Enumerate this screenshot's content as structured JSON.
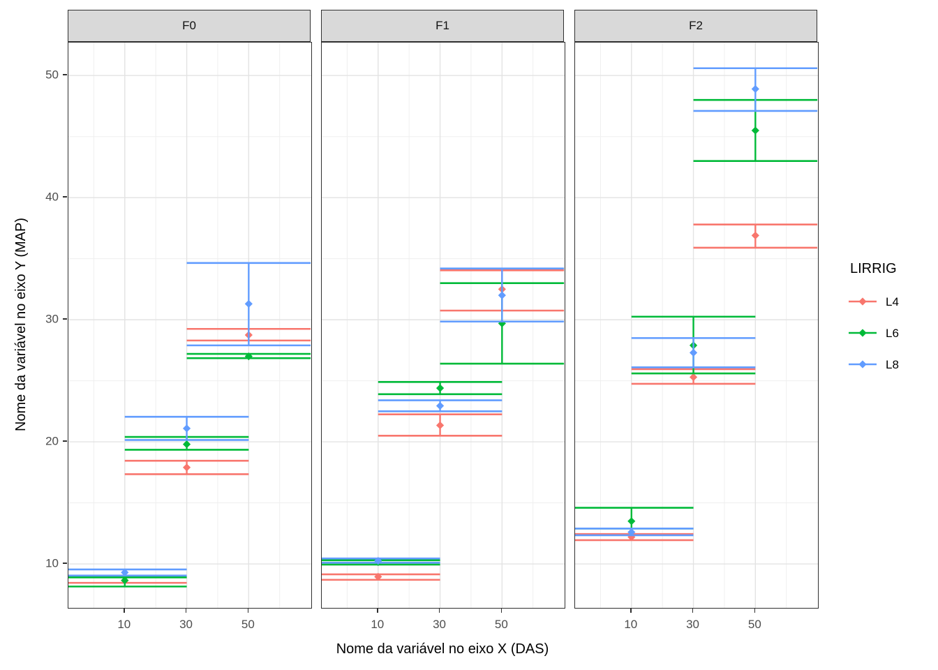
{
  "figure": {
    "x_axis_title": "Nome da variável no eixo X (DAS)",
    "y_axis_title": "Nome da variável no eixo Y (MAP)"
  },
  "legend": {
    "title": "LIRRIG",
    "items": [
      {
        "label": "L4",
        "color": "#F8766D"
      },
      {
        "label": "L6",
        "color": "#00BA38"
      },
      {
        "label": "L8",
        "color": "#619CFF"
      }
    ]
  },
  "theme": {
    "background": "#FFFFFF",
    "strip_fill": "#D9D9D9",
    "panel_border": "#2F2F2F",
    "grid_major": "#E3E3E3",
    "grid_minor": "#EFEFEF",
    "tick_color": "#2F2F2F",
    "tick_label_color": "#4D4D4D",
    "title_color": "#000000"
  },
  "chart_data": {
    "type": "scatter",
    "subtype": "pointrange-with-errorbars",
    "title": "",
    "xlabel": "Nome da variável no eixo X (DAS)",
    "ylabel": "Nome da variável no eixo Y (MAP)",
    "facets": [
      "F0",
      "F1",
      "F2"
    ],
    "series_order": [
      "L4",
      "L6",
      "L8"
    ],
    "colors": {
      "L4": "#F8766D",
      "L6": "#00BA38",
      "L8": "#619CFF"
    },
    "x_ticks": [
      10,
      30,
      50
    ],
    "y_ticks": [
      10,
      20,
      30,
      40,
      50
    ],
    "x_minor": [
      0,
      20,
      40,
      60
    ],
    "y_minor": [
      15,
      25,
      35,
      45
    ],
    "x_range": [
      -8.2,
      70.2
    ],
    "y_range": [
      6.4,
      52.7
    ],
    "errorbar_halfwidth": 20,
    "grid": true,
    "legend_position": "right",
    "points": [
      {
        "facet": "F0",
        "series": "L4",
        "x": 10,
        "y": 8.65,
        "ymin": 8.45,
        "ymax": 8.95
      },
      {
        "facet": "F0",
        "series": "L4",
        "x": 30,
        "y": 17.9,
        "ymin": 17.35,
        "ymax": 18.45
      },
      {
        "facet": "F0",
        "series": "L4",
        "x": 50,
        "y": 28.75,
        "ymin": 28.3,
        "ymax": 29.25
      },
      {
        "facet": "F0",
        "series": "L6",
        "x": 10,
        "y": 8.65,
        "ymin": 8.15,
        "ymax": 8.9
      },
      {
        "facet": "F0",
        "series": "L6",
        "x": 30,
        "y": 19.8,
        "ymin": 19.35,
        "ymax": 20.4
      },
      {
        "facet": "F0",
        "series": "L6",
        "x": 50,
        "y": 27.0,
        "ymin": 26.85,
        "ymax": 27.2
      },
      {
        "facet": "F0",
        "series": "L8",
        "x": 10,
        "y": 9.3,
        "ymin": 9.05,
        "ymax": 9.55
      },
      {
        "facet": "F0",
        "series": "L8",
        "x": 30,
        "y": 21.1,
        "ymin": 20.15,
        "ymax": 22.05
      },
      {
        "facet": "F0",
        "series": "L8",
        "x": 50,
        "y": 31.3,
        "ymin": 27.9,
        "ymax": 34.65
      },
      {
        "facet": "F1",
        "series": "L4",
        "x": 10,
        "y": 8.95,
        "ymin": 8.7,
        "ymax": 9.15
      },
      {
        "facet": "F1",
        "series": "L4",
        "x": 30,
        "y": 21.35,
        "ymin": 20.5,
        "ymax": 22.25
      },
      {
        "facet": "F1",
        "series": "L4",
        "x": 50,
        "y": 32.5,
        "ymin": 30.75,
        "ymax": 34.05
      },
      {
        "facet": "F1",
        "series": "L6",
        "x": 10,
        "y": 10.15,
        "ymin": 9.95,
        "ymax": 10.3
      },
      {
        "facet": "F1",
        "series": "L6",
        "x": 30,
        "y": 24.4,
        "ymin": 23.9,
        "ymax": 24.9
      },
      {
        "facet": "F1",
        "series": "L6",
        "x": 50,
        "y": 29.7,
        "ymin": 26.4,
        "ymax": 33.0
      },
      {
        "facet": "F1",
        "series": "L8",
        "x": 10,
        "y": 10.25,
        "ymin": 10.1,
        "ymax": 10.45
      },
      {
        "facet": "F1",
        "series": "L8",
        "x": 30,
        "y": 22.95,
        "ymin": 22.5,
        "ymax": 23.4
      },
      {
        "facet": "F1",
        "series": "L8",
        "x": 50,
        "y": 32.0,
        "ymin": 29.85,
        "ymax": 34.2
      },
      {
        "facet": "F2",
        "series": "L4",
        "x": 10,
        "y": 12.2,
        "ymin": 11.95,
        "ymax": 12.45
      },
      {
        "facet": "F2",
        "series": "L4",
        "x": 30,
        "y": 25.3,
        "ymin": 24.75,
        "ymax": 25.95
      },
      {
        "facet": "F2",
        "series": "L4",
        "x": 50,
        "y": 36.9,
        "ymin": 35.9,
        "ymax": 37.8
      },
      {
        "facet": "F2",
        "series": "L6",
        "x": 10,
        "y": 13.5,
        "ymin": 12.9,
        "ymax": 14.6
      },
      {
        "facet": "F2",
        "series": "L6",
        "x": 30,
        "y": 27.9,
        "ymin": 25.6,
        "ymax": 30.25
      },
      {
        "facet": "F2",
        "series": "L6",
        "x": 50,
        "y": 45.5,
        "ymin": 43.0,
        "ymax": 48.0
      },
      {
        "facet": "F2",
        "series": "L8",
        "x": 10,
        "y": 12.6,
        "ymin": 12.35,
        "ymax": 12.9
      },
      {
        "facet": "F2",
        "series": "L8",
        "x": 30,
        "y": 27.3,
        "ymin": 26.1,
        "ymax": 28.5
      },
      {
        "facet": "F2",
        "series": "L8",
        "x": 50,
        "y": 48.9,
        "ymin": 47.1,
        "ymax": 50.6
      }
    ]
  }
}
